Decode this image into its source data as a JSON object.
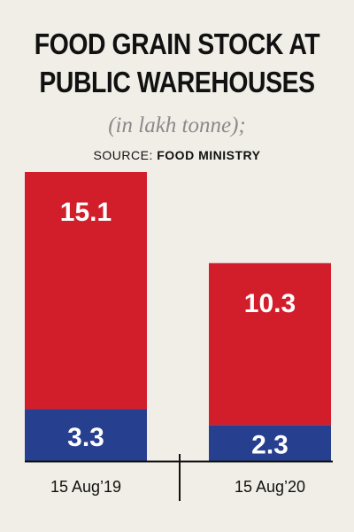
{
  "header": {
    "title_line1": "FOOD GRAIN STOCK AT",
    "title_line2": "PUBLIC WAREHOUSES",
    "subtitle": "(in lakh tonne);",
    "source_prefix": "SOURCE:",
    "source_name": "FOOD MINISTRY"
  },
  "colors": {
    "red": "#d21e2b",
    "blue": "#263f8e",
    "background": "#f1eee7",
    "axis": "#111111"
  },
  "chart_data": {
    "type": "bar",
    "stacked": true,
    "categories": [
      "15 Aug’19",
      "15 Aug’20"
    ],
    "series": [
      {
        "name": "",
        "values": [
          3.3,
          2.3
        ],
        "color": "#263f8e"
      },
      {
        "name": "",
        "values": [
          15.1,
          10.3
        ],
        "color": "#d21e2b"
      }
    ],
    "ylim": [
      0,
      18.4
    ],
    "grid": false,
    "legend": "none"
  }
}
